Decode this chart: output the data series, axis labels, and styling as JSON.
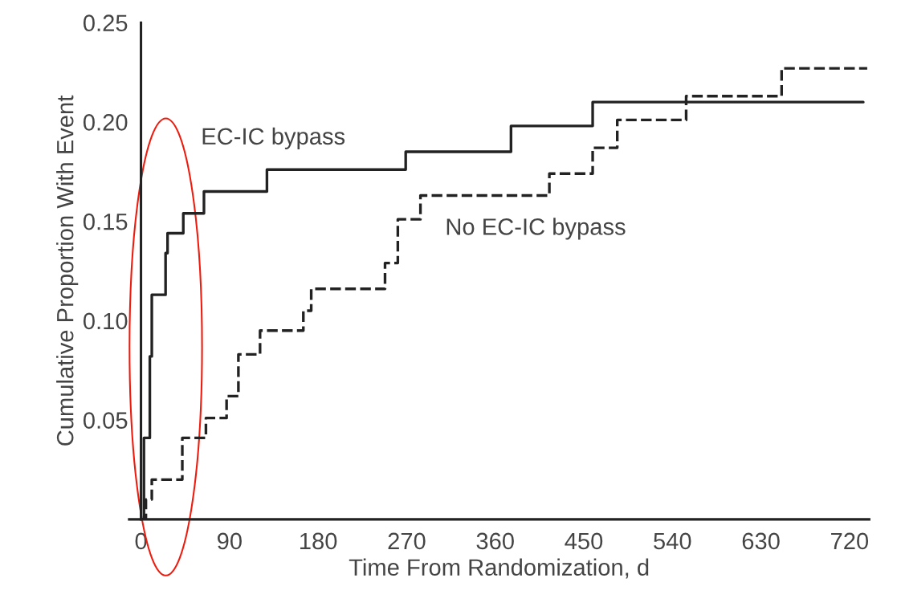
{
  "chart_data": {
    "type": "step",
    "xlabel": "Time From Randomization, d",
    "ylabel": "Cumulative Proportion With Event",
    "xlim": [
      -12,
      740
    ],
    "ylim": [
      0,
      0.25
    ],
    "xticks": [
      0,
      90,
      180,
      270,
      360,
      450,
      540,
      630,
      720
    ],
    "yticks": [
      {
        "value": 0.05,
        "label": "0.05"
      },
      {
        "value": 0.1,
        "label": "0.10"
      },
      {
        "value": 0.15,
        "label": "0.15"
      },
      {
        "value": 0.2,
        "label": "0.20"
      },
      {
        "value": 0.25,
        "label": "0.25"
      }
    ],
    "grid": false,
    "legend": false,
    "series": [
      {
        "name": "EC-IC bypass",
        "color": "#222222",
        "line_style": "solid",
        "x": [
          0,
          3,
          9,
          11,
          25,
          27,
          43,
          64,
          128,
          269,
          376,
          459,
          734
        ],
        "values": [
          0,
          0.041,
          0.082,
          0.113,
          0.134,
          0.144,
          0.154,
          0.165,
          0.176,
          0.185,
          0.198,
          0.21,
          0.21
        ]
      },
      {
        "name": "No EC-IC bypass",
        "color": "#222222",
        "line_style": "dashed",
        "x": [
          0,
          5,
          11,
          42,
          66,
          87,
          99,
          121,
          165,
          173,
          248,
          261,
          284,
          415,
          459,
          484,
          554,
          651,
          738
        ],
        "values": [
          0,
          0.01,
          0.02,
          0.041,
          0.051,
          0.062,
          0.083,
          0.095,
          0.105,
          0.116,
          0.129,
          0.151,
          0.163,
          0.174,
          0.187,
          0.201,
          0.213,
          0.227,
          0.227
        ]
      }
    ]
  }
}
